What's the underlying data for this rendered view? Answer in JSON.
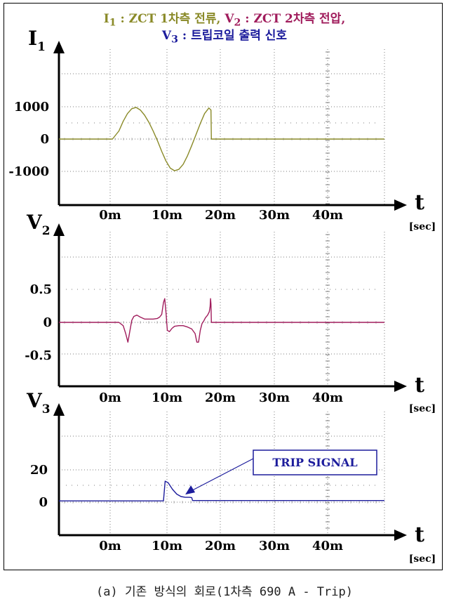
{
  "title": {
    "i1_symbol": "I",
    "i1_sub": "1",
    "i1_text": " : ZCT 1차측 전류, ",
    "v2_symbol": "V",
    "v2_sub": "2",
    "v2_text": " : ZCT 2차측 전압,",
    "v3_symbol": "V",
    "v3_sub": "3",
    "v3_text": " : 트립코일 출력 신호"
  },
  "caption": "(a) 기존 방식의 회로(1차측 690 A - Trip)",
  "colors": {
    "i1": "#8a8a28",
    "v2": "#a01c5c",
    "v3": "#1c1c9c",
    "grid": "#7c7c7c",
    "axis": "#000000"
  },
  "chart_data": [
    {
      "type": "line",
      "ylabel": "I",
      "ylabel_sub": "1",
      "xlabel": "t",
      "xunit": "[sec]",
      "x_tick_labels": [
        "0m",
        "10m",
        "20m",
        "30m",
        "40m"
      ],
      "x_ticks": [
        0,
        10,
        20,
        30,
        40
      ],
      "y_tick_labels": [
        "1000",
        "0",
        "-1000"
      ],
      "y_ticks": [
        1000,
        0,
        -1000
      ],
      "xlim": [
        -14,
        62
      ],
      "ylim": [
        -2000,
        2000
      ],
      "grid": true,
      "series": [
        {
          "color": "#8a8a28",
          "x": [
            -14,
            -1.5,
            0,
            1,
            2,
            3,
            4,
            5,
            6,
            7,
            8,
            9,
            10,
            11,
            12,
            13,
            14,
            15,
            16,
            17,
            18,
            19,
            20,
            21,
            21.5,
            21.6,
            22,
            62
          ],
          "y": [
            0,
            0,
            250,
            550,
            790,
            940,
            980,
            900,
            740,
            520,
            250,
            -50,
            -380,
            -680,
            -900,
            -980,
            -940,
            -780,
            -520,
            -200,
            140,
            480,
            790,
            960,
            900,
            0,
            0,
            0
          ]
        }
      ]
    },
    {
      "type": "line",
      "ylabel": "V",
      "ylabel_sub": "2",
      "xlabel": "t",
      "xunit": "[sec]",
      "x_tick_labels": [
        "0m",
        "10m",
        "20m",
        "30m",
        "40m"
      ],
      "x_ticks": [
        0,
        10,
        20,
        30,
        40
      ],
      "y_tick_labels": [
        "0.5",
        "0",
        "-0.5"
      ],
      "y_ticks": [
        0.5,
        0,
        -0.5
      ],
      "xlim": [
        -14,
        62
      ],
      "ylim": [
        -0.9,
        1.0
      ],
      "grid": true,
      "series": [
        {
          "color": "#a01c5c",
          "x": [
            -14,
            0,
            1,
            1.6,
            2.1,
            2.6,
            3.0,
            3.5,
            4.2,
            5,
            6,
            7,
            8,
            9,
            9.5,
            10,
            10.4,
            10.7,
            11.0,
            11.3,
            11.8,
            12.4,
            13,
            14,
            15,
            16,
            17,
            17.8,
            18.2,
            18.6,
            19.0,
            19.4,
            19.8,
            20.2,
            20.7,
            21.1,
            21.3,
            21.4,
            21.5,
            21.6,
            22,
            62
          ],
          "y": [
            0,
            0,
            -0.05,
            -0.17,
            -0.3,
            -0.12,
            0.03,
            0.09,
            0.11,
            0.08,
            0.05,
            0.05,
            0.05,
            0.06,
            0.08,
            0.12,
            0.3,
            0.36,
            0.15,
            -0.12,
            -0.14,
            -0.09,
            -0.06,
            -0.05,
            -0.05,
            -0.07,
            -0.1,
            -0.17,
            -0.3,
            -0.3,
            -0.12,
            -0.02,
            0.02,
            0.07,
            0.11,
            0.16,
            0.24,
            0.36,
            0.28,
            0,
            0,
            0
          ]
        }
      ]
    },
    {
      "type": "line",
      "ylabel": "V",
      "ylabel_sub": "3",
      "xlabel": "t",
      "xunit": "[sec]",
      "x_tick_labels": [
        "0m",
        "10m",
        "20m",
        "30m",
        "40m"
      ],
      "x_ticks": [
        0,
        10,
        20,
        30,
        40
      ],
      "y_tick_labels": [
        "20",
        "0"
      ],
      "y_ticks": [
        20,
        0
      ],
      "xlim": [
        -14,
        62
      ],
      "ylim": [
        -20,
        40
      ],
      "grid": true,
      "annotation": {
        "text": "TRIP SIGNAL",
        "point_x": 15.5,
        "point_y": 3
      },
      "series": [
        {
          "color": "#1c1c9c",
          "x": [
            -14,
            10.4,
            10.8,
            11.5,
            12.5,
            13.5,
            14.5,
            15.5,
            16.5,
            17,
            17.2,
            62
          ],
          "y": [
            0.8,
            0.8,
            13,
            12,
            8,
            5,
            3.5,
            3,
            3,
            2.8,
            1,
            1
          ]
        }
      ]
    }
  ]
}
